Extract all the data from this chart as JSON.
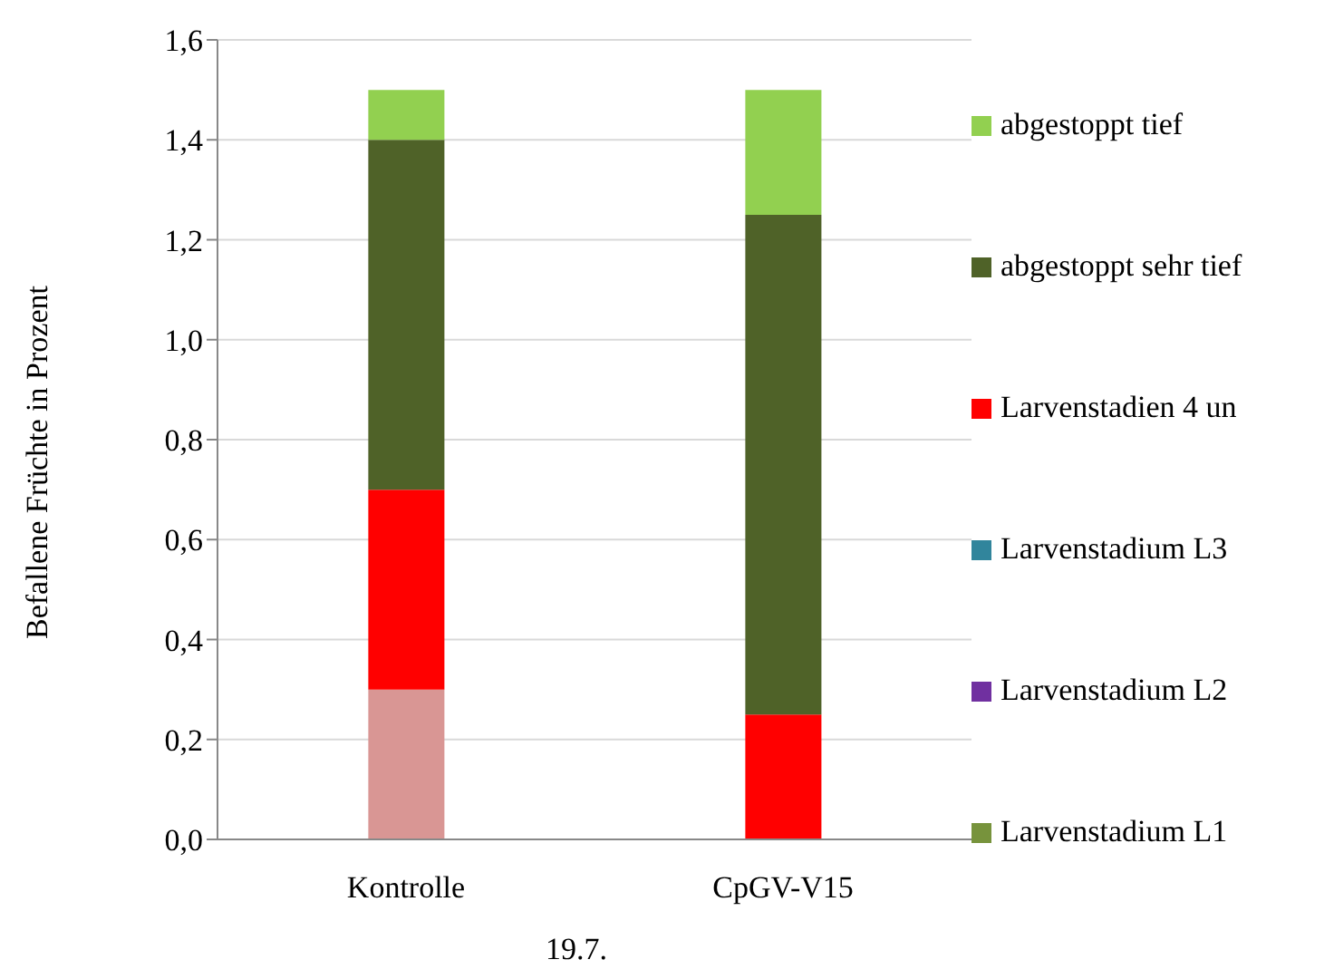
{
  "chart_data": {
    "type": "bar",
    "stacked": true,
    "ylabel": "Befallene Früchte in Prozent",
    "categories": [
      "Kontrolle",
      "CpGV-V15"
    ],
    "series": [
      {
        "color": "#d99694",
        "values": [
          0.3,
          0
        ]
      },
      {
        "name": "Larvenstadium L1",
        "color": "#77933c",
        "values": [
          0,
          0
        ]
      },
      {
        "name": "Larvenstadium L2",
        "color": "#7030a0",
        "values": [
          0,
          0
        ]
      },
      {
        "name": "Larvenstadium L3",
        "color": "#31859c",
        "values": [
          0,
          0
        ]
      },
      {
        "name": "Larvenstadien 4 un",
        "color": "#ff0000",
        "values": [
          0.4,
          0.25
        ]
      },
      {
        "name": "abgestoppt sehr tief",
        "color": "#4f6228",
        "values": [
          0.7,
          1.0
        ]
      },
      {
        "name": "abgestoppt tief",
        "color": "#92d050",
        "values": [
          0.1,
          0.25
        ]
      }
    ],
    "ylim": [
      0,
      1.6
    ],
    "yticks": [
      {
        "value": 0,
        "label": "0,0"
      },
      {
        "value": 0.2,
        "label": "0,2"
      },
      {
        "value": 0.4,
        "label": "0,4"
      },
      {
        "value": 0.6,
        "label": "0,6"
      },
      {
        "value": 0.8,
        "label": "0,8"
      },
      {
        "value": 1,
        "label": "1,0"
      },
      {
        "value": 1.2,
        "label": "1,2"
      },
      {
        "value": 1.4,
        "label": "1,4"
      },
      {
        "value": 1.6,
        "label": "1,6"
      }
    ],
    "grid": "y",
    "legend": "right",
    "annotations": [
      "19.7."
    ]
  }
}
